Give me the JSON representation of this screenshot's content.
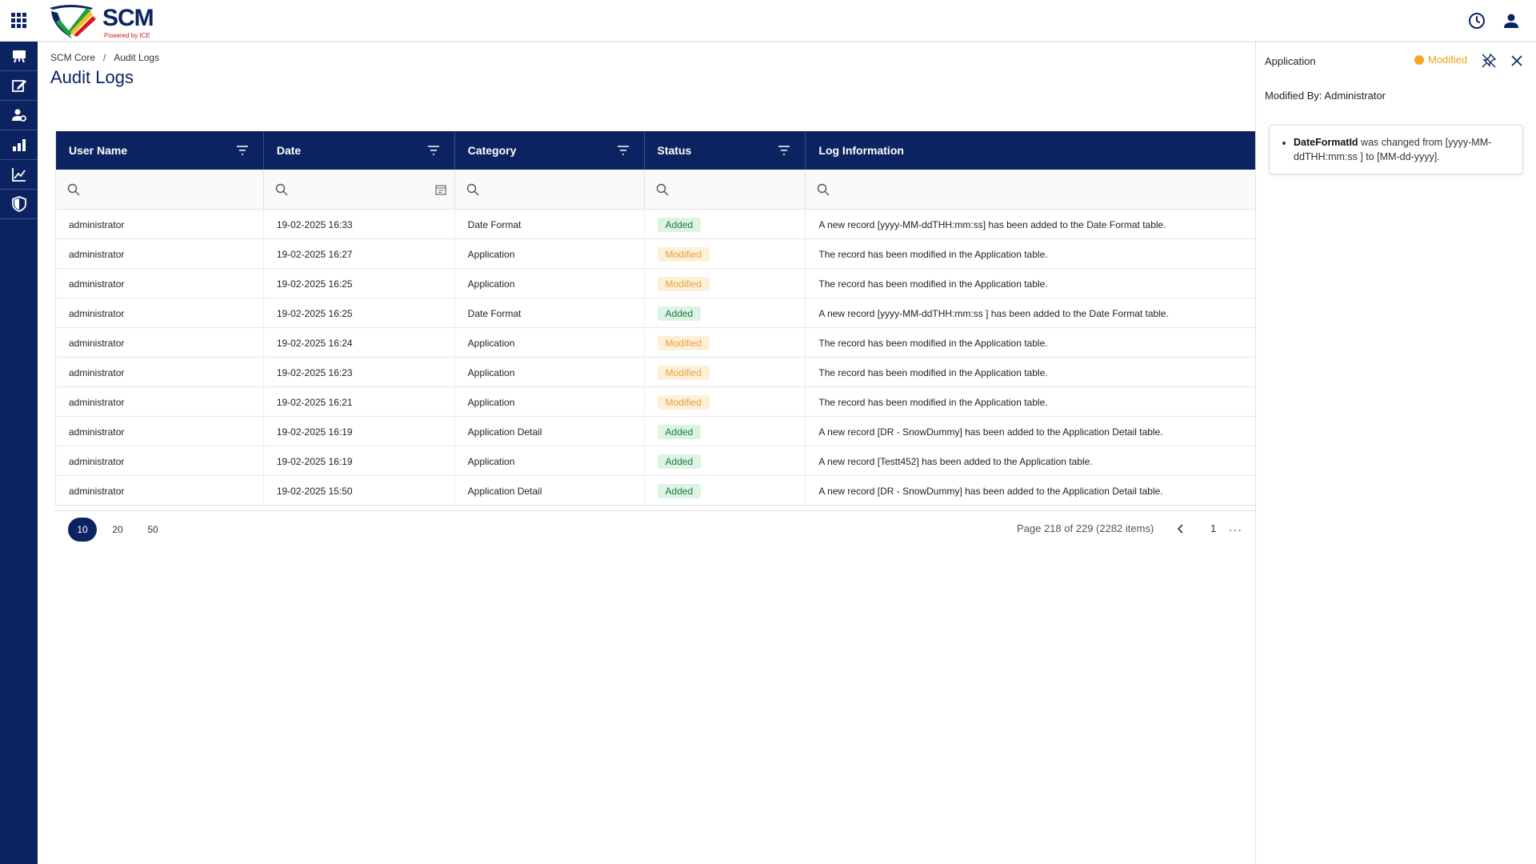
{
  "header": {
    "logo_text": "SCM",
    "logo_subtext": "Powered by ICE"
  },
  "sidebar": {
    "items": [
      {
        "name": "presentation-icon"
      },
      {
        "name": "edit-icon"
      },
      {
        "name": "user-settings-icon"
      },
      {
        "name": "bar-chart-icon"
      },
      {
        "name": "trend-chart-icon"
      },
      {
        "name": "shield-icon"
      }
    ]
  },
  "breadcrumb": {
    "root": "SCM Core",
    "separator": "/",
    "current": "Audit Logs"
  },
  "page": {
    "title": "Audit Logs"
  },
  "table": {
    "columns": [
      "User Name",
      "Date",
      "Category",
      "Status",
      "Log Information"
    ],
    "rows": [
      {
        "user": "administrator",
        "date": "19-02-2025 16:33",
        "category": "Date Format",
        "status": "Added",
        "log": "A new record [yyyy-MM-ddTHH:mm:ss] has been added to the Date Format table."
      },
      {
        "user": "administrator",
        "date": "19-02-2025 16:27",
        "category": "Application",
        "status": "Modified",
        "log": "The record has been modified in the Application table."
      },
      {
        "user": "administrator",
        "date": "19-02-2025 16:25",
        "category": "Application",
        "status": "Modified",
        "log": "The record has been modified in the Application table."
      },
      {
        "user": "administrator",
        "date": "19-02-2025 16:25",
        "category": "Date Format",
        "status": "Added",
        "log": "A new record [yyyy-MM-ddTHH:mm:ss ] has been added to the Date Format table."
      },
      {
        "user": "administrator",
        "date": "19-02-2025 16:24",
        "category": "Application",
        "status": "Modified",
        "log": "The record has been modified in the Application table."
      },
      {
        "user": "administrator",
        "date": "19-02-2025 16:23",
        "category": "Application",
        "status": "Modified",
        "log": "The record has been modified in the Application table."
      },
      {
        "user": "administrator",
        "date": "19-02-2025 16:21",
        "category": "Application",
        "status": "Modified",
        "log": "The record has been modified in the Application table."
      },
      {
        "user": "administrator",
        "date": "19-02-2025 16:19",
        "category": "Application Detail",
        "status": "Added",
        "log": "A new record [DR - SnowDummy] has been added to the Application Detail table."
      },
      {
        "user": "administrator",
        "date": "19-02-2025 16:19",
        "category": "Application",
        "status": "Added",
        "log": "A new record [Testt452] has been added to the Application table."
      },
      {
        "user": "administrator",
        "date": "19-02-2025 15:50",
        "category": "Application Detail",
        "status": "Added",
        "log": "A new record [DR - SnowDummy] has been added to the Application Detail table."
      }
    ]
  },
  "pager": {
    "sizes": [
      "10",
      "20",
      "50"
    ],
    "active_size": "10",
    "info": "Page 218 of 229 (2282 items)",
    "page_number": "1",
    "more": "..."
  },
  "panel": {
    "title": "Application",
    "status": "Modified",
    "modified_by": "Modified By: Administrator",
    "change_field": "DateFormatId",
    "change_text": " was changed from [yyyy-MM-ddTHH:mm:ss ] to [MM-dd-yyyy]."
  },
  "colors": {
    "navy": "#0b2461",
    "added_bg": "#ddf3e4",
    "added_text": "#1e7a3f",
    "modified_bg": "#fdf0d9",
    "modified_text": "#e8a13a",
    "status_dot": "#f5a623"
  }
}
